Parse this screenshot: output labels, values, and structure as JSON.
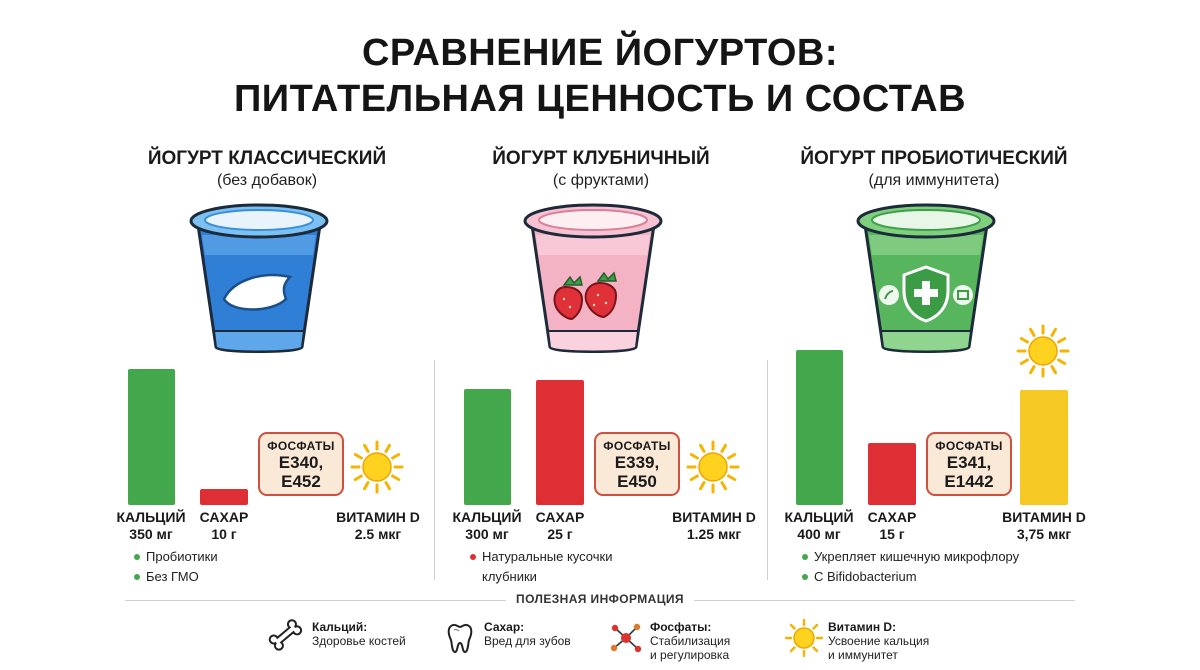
{
  "title_line1": "СРАВНЕНИЕ ЙОГУРТОВ:",
  "title_line2": "ПИТАТЕЛЬНАЯ ЦЕННОСТЬ И СОСТАВ",
  "chart_data": {
    "type": "bar",
    "categories": [
      "КАЛЬЦИЙ",
      "САХАР",
      "ВИТАМИН D"
    ],
    "panels": [
      {
        "name": "ЙОГУРТ КЛАССИЧЕСКИЙ",
        "subtitle": "(без добавок)",
        "values": {
          "calcium_mg": 350,
          "sugar_g": 10,
          "vitamin_d_mcg": 2.5
        },
        "labels": {
          "calcium": [
            "КАЛЬЦИЙ",
            "350 мг"
          ],
          "sugar": [
            "САХАР",
            "10 г"
          ],
          "vitamin_d": [
            "ВИТАМИН D",
            "2.5 мкг"
          ]
        },
        "phosphates": {
          "label": "ФОСФАТЫ",
          "codes": [
            "E340,",
            "E452"
          ]
        },
        "bullets": [
          "Пробиотики",
          "Без ГМО"
        ],
        "bullet_color": "#43a84c",
        "cup_color": "#2f7fd6"
      },
      {
        "name": "ЙОГУРТ КЛУБНИЧНЫЙ",
        "subtitle": "(с фруктами)",
        "values": {
          "calcium_mg": 300,
          "sugar_g": 25,
          "vitamin_d_mcg": 1.25
        },
        "labels": {
          "calcium": [
            "КАЛЬЦИЙ",
            "300 мг"
          ],
          "sugar": [
            "САХАР",
            "25 г"
          ],
          "vitamin_d": [
            "ВИТАМИН D",
            "1.25 мкг"
          ]
        },
        "phosphates": {
          "label": "ФОСФАТЫ",
          "codes": [
            "E339,",
            "E450"
          ]
        },
        "bullets": [
          "Натуральные кусочки клубники"
        ],
        "bullet_color": "#dd2f34",
        "cup_color": "#f2a9bd"
      },
      {
        "name": "ЙОГУРТ ПРОБИОТИЧЕСКИЙ",
        "subtitle": "(для иммунитета)",
        "values": {
          "calcium_mg": 400,
          "sugar_g": 15,
          "vitamin_d_mcg": 3.75
        },
        "labels": {
          "calcium": [
            "КАЛЬЦИЙ",
            "400 мг"
          ],
          "sugar": [
            "САХАР",
            "15 г"
          ],
          "vitamin_d": [
            "ВИТАМИН D",
            "3,75 мкг"
          ]
        },
        "phosphates": {
          "label": "ФОСФАТЫ",
          "codes": [
            "E341,",
            "E1442"
          ]
        },
        "bullets": [
          "Укрепляет кишечную микрофлору",
          "С Bifidobacterium"
        ],
        "bullet_color": "#43a84c",
        "cup_color": "#4caf50"
      }
    ],
    "colors": {
      "calcium": "#43a84c",
      "sugar": "#dd2f34",
      "vitamin_d": "#f6c823"
    }
  },
  "info": {
    "title": "ПОЛЕЗНАЯ ИНФОРМАЦИЯ",
    "items": [
      {
        "icon": "bone-icon",
        "head": "Кальций:",
        "text": "Здоровье костей"
      },
      {
        "icon": "tooth-icon",
        "head": "Сахар:",
        "text": "Вред для зубов"
      },
      {
        "icon": "molecule-icon",
        "head": "Фосфаты:",
        "text1": "Стабилизация",
        "text2": "и регулировка"
      },
      {
        "icon": "sun-icon",
        "head": "Витамин D:",
        "text1": "Усвоение кальция",
        "text2": "и иммунитет"
      }
    ]
  }
}
